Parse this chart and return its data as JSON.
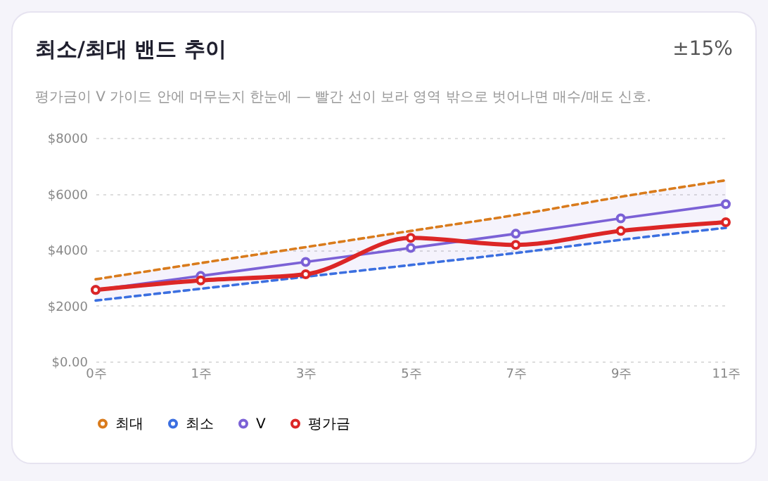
{
  "chart_data": {
    "type": "line",
    "title": "최소/최대 밴드 추이",
    "subtitle": "평가금이 V 가이드 안에 머무는지 한눈에 — 빨간 선이 보라 영역 밖으로 벗어나면 매수/매도 신호.",
    "annotations": [
      "±15%"
    ],
    "categories": [
      "0주",
      "1주",
      "3주",
      "5주",
      "7주",
      "9주",
      "11주"
    ],
    "series": [
      {
        "name": "최대",
        "color": "#d97b1c",
        "line_style": "dashed",
        "marker": "none",
        "values": [
          2940,
          3520,
          4090,
          4670,
          5240,
          5890,
          6480
        ]
      },
      {
        "name": "최소",
        "color": "#3b6fe0",
        "line_style": "dashed",
        "marker": "none",
        "values": [
          2180,
          2600,
          3030,
          3450,
          3880,
          4350,
          4780
        ]
      },
      {
        "name": "V",
        "color": "#7b61d6",
        "line_style": "solid",
        "marker": "circle",
        "values": [
          2560,
          3060,
          3560,
          4060,
          4570,
          5120,
          5630
        ],
        "lower": [
          2180,
          2600,
          3030,
          3450,
          3880,
          4350,
          4780
        ],
        "upper": [
          2940,
          3520,
          4090,
          4670,
          5240,
          5890,
          6480
        ]
      },
      {
        "name": "평가금",
        "color": "#dc2626",
        "line_style": "solid",
        "marker": "circle",
        "values": [
          2560,
          2900,
          3120,
          4420,
          4170,
          4670,
          4980
        ]
      }
    ],
    "ylim": [
      0,
      8000
    ],
    "yticks": [
      {
        "value": 0,
        "label": "$0.00"
      },
      {
        "value": 2000,
        "label": "$2000"
      },
      {
        "value": 4000,
        "label": "$4000"
      },
      {
        "value": 6000,
        "label": "$6000"
      },
      {
        "value": 8000,
        "label": "$8000"
      }
    ],
    "grid": "y",
    "legend": "bottom"
  }
}
